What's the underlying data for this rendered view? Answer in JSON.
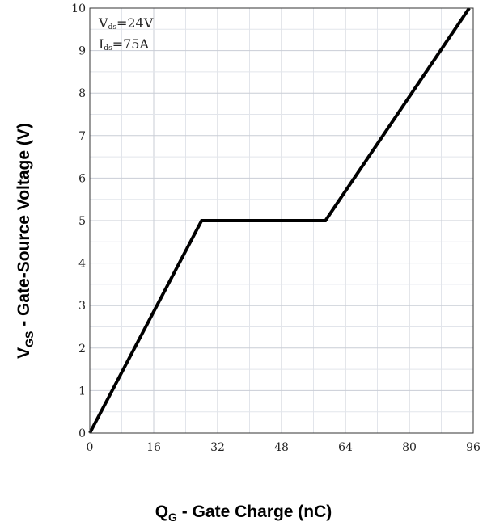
{
  "chart_data": {
    "type": "line",
    "x": [
      0,
      28,
      59,
      95
    ],
    "series": [
      {
        "values": [
          0,
          5,
          5,
          10
        ],
        "color": "#000000"
      }
    ],
    "xlim": [
      0,
      96
    ],
    "ylim": [
      0,
      10
    ],
    "x_ticks": [
      0,
      16,
      32,
      48,
      64,
      80,
      96
    ],
    "y_ticks": [
      0,
      1,
      2,
      3,
      4,
      5,
      6,
      7,
      8,
      9,
      10
    ],
    "grid": true,
    "xlabel": {
      "main": "Q",
      "sub": "G",
      "rest": " - Gate Charge (nC)"
    },
    "ylabel": {
      "main": "V",
      "sub": "GS",
      "rest": " - Gate-Source Voltage (V)"
    },
    "annotations": [
      {
        "main": "V",
        "sub": "ds",
        "rest": "=24V"
      },
      {
        "main": "I",
        "sub": "ds",
        "rest": "=75A"
      }
    ]
  }
}
